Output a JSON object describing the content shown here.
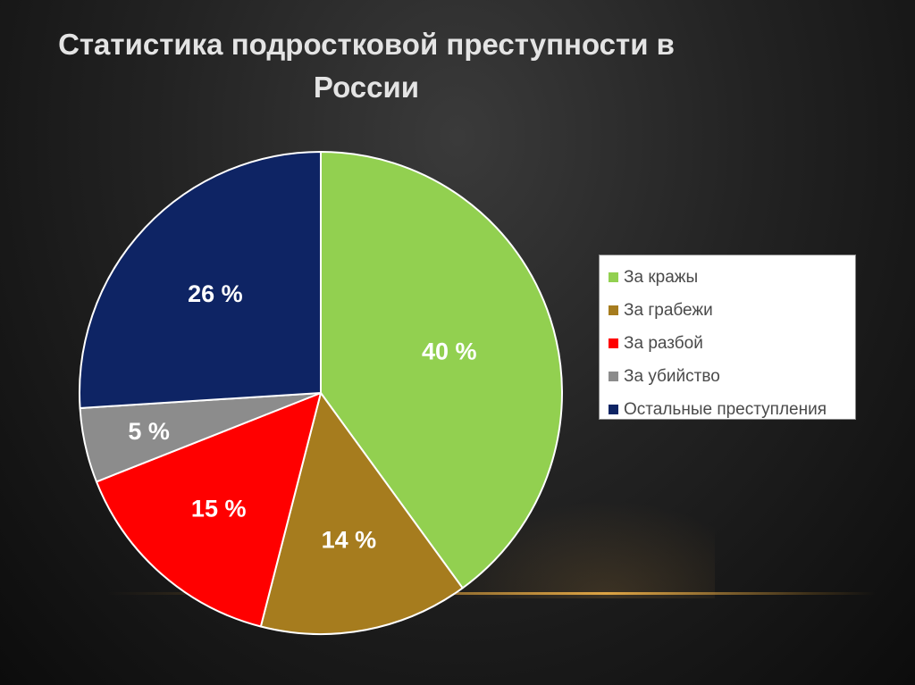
{
  "title": "Статистика подростковой преступности в России",
  "chart_data": {
    "type": "pie",
    "title": "Статистика подростковой преступности в России",
    "categories": [
      "За кражы",
      "За грабежи",
      "За разбой",
      "За убийство",
      "Остальные преступления"
    ],
    "values": [
      40,
      14,
      15,
      5,
      26
    ],
    "labels": [
      "40 %",
      "14 %",
      "15 %",
      "5 %",
      "26 %"
    ],
    "colors": [
      "#92d050",
      "#a67c1e",
      "#ff0000",
      "#8c8c8c",
      "#0e2464"
    ],
    "legend_position": "right",
    "start_angle_deg": 0,
    "direction": "clockwise"
  }
}
